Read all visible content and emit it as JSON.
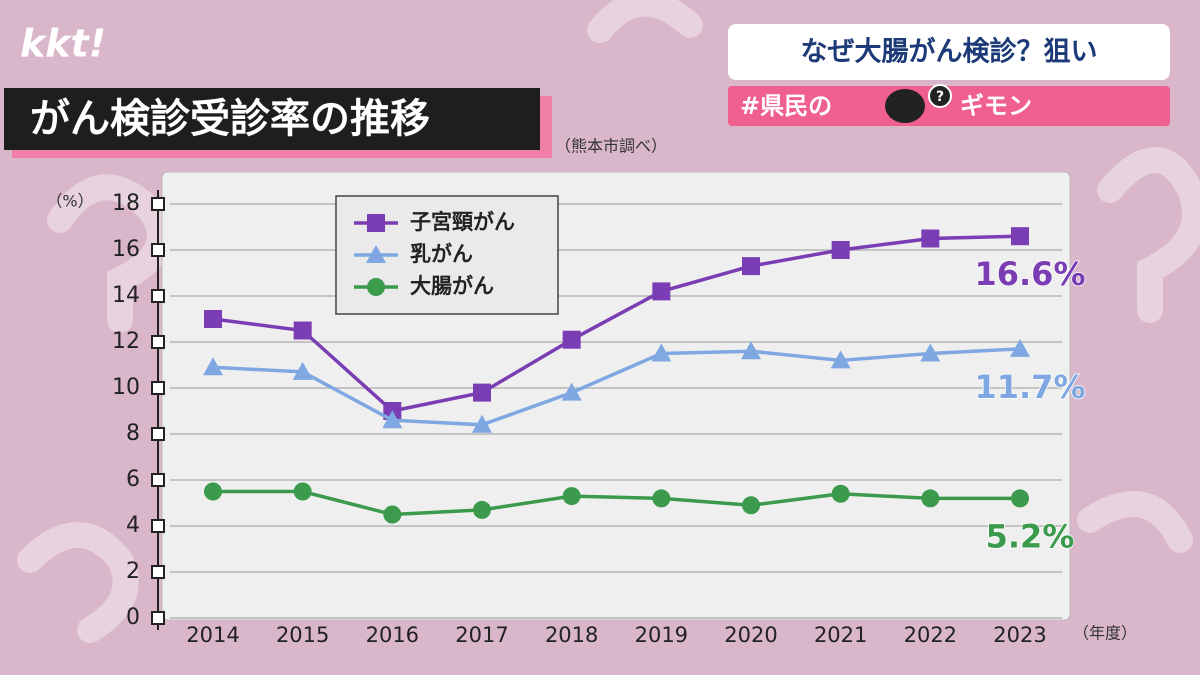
{
  "logo": "kkt!",
  "headline": "なぜ大腸がん検診？狙い",
  "tag": {
    "before": "#県民の",
    "icon_mark": "?",
    "after": "ギモン"
  },
  "chart_data": {
    "type": "line",
    "title": "がん検診受診率の推移",
    "subtitle": "（熊本市調べ）",
    "y_label": "（%）",
    "x_label": "（年度）",
    "categories": [
      "2014",
      "2015",
      "2016",
      "2017",
      "2018",
      "2019",
      "2020",
      "2021",
      "2022",
      "2023"
    ],
    "ylim": [
      0,
      18
    ],
    "yticks": [
      0,
      2,
      4,
      6,
      8,
      10,
      12,
      14,
      16,
      18
    ],
    "grid": true,
    "legend": "upper left",
    "series": [
      {
        "name": "子宮頸がん",
        "color": "#7a3db3",
        "marker": "square",
        "values": [
          13.0,
          12.5,
          9.0,
          9.8,
          12.1,
          14.2,
          15.3,
          16.0,
          16.5,
          16.6
        ],
        "value_labels": [
          null,
          null,
          null,
          null,
          null,
          null,
          null,
          null,
          null,
          "16.6%"
        ]
      },
      {
        "name": "乳がん",
        "color": "#7fa7e2",
        "marker": "triangle",
        "values": [
          10.9,
          10.7,
          8.6,
          8.4,
          9.8,
          11.5,
          11.6,
          11.2,
          11.5,
          11.7
        ],
        "value_labels": [
          null,
          null,
          null,
          null,
          null,
          null,
          null,
          null,
          null,
          "11.7%"
        ]
      },
      {
        "name": "大腸がん",
        "color": "#3b9a4c",
        "marker": "circle",
        "values": [
          5.5,
          5.5,
          4.5,
          4.7,
          5.3,
          5.2,
          4.9,
          5.4,
          5.2,
          5.2
        ],
        "value_labels": [
          null,
          null,
          null,
          null,
          null,
          null,
          null,
          null,
          null,
          "5.2%"
        ]
      }
    ]
  }
}
